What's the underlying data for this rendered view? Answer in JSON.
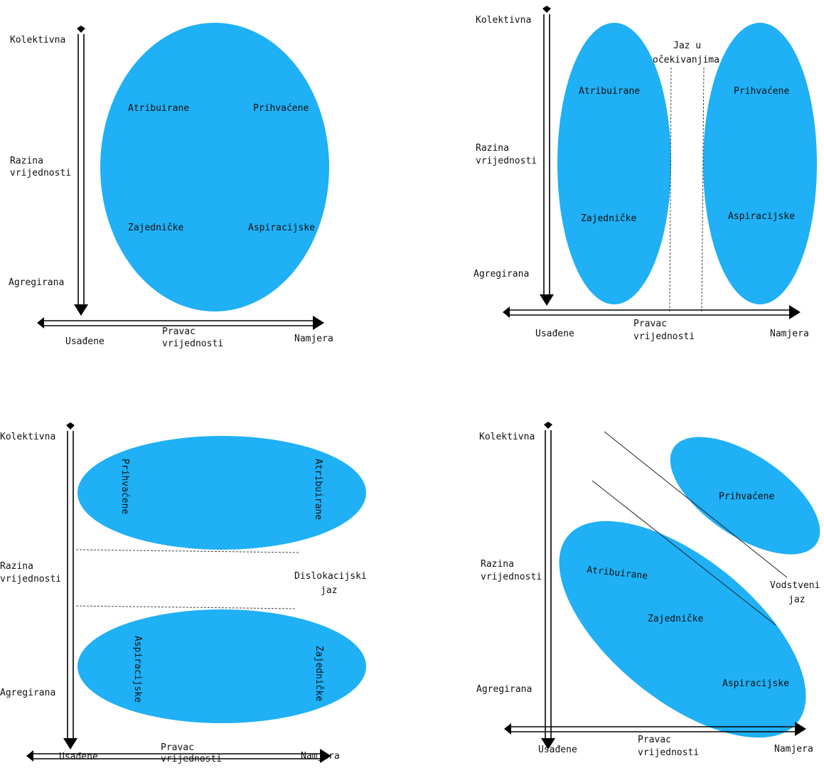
{
  "colors": {
    "ellipse": "#1fb0f5",
    "line": "#000000",
    "text": "#111111"
  },
  "panels": [
    {
      "axis": {
        "top": "Kolektivna",
        "middle_1": "Razina",
        "middle_2": "vrijednosti",
        "bottom": "Agregirana",
        "left": "Usađene",
        "center_1": "Pravac",
        "center_2": "vrijednosti",
        "right": "Namjera"
      },
      "labels": {
        "tl": "Atribuirane",
        "tr": "Prihvaćene",
        "bl": "Zajedničke",
        "br": "Aspiracijske"
      }
    },
    {
      "axis": {
        "top": "Kolektivna",
        "middle_1": "Razina",
        "middle_2": "vrijednosti",
        "bottom": "Agregirana",
        "left": "Usađene",
        "center_1": "Pravac",
        "center_2": "vrijednosti",
        "right": "Namjera"
      },
      "labels": {
        "tl": "Atribuirane",
        "bl": "Zajedničke",
        "tr": "Prihvaćene",
        "br": "Aspiracijske"
      },
      "gap_1": "Jaz u",
      "gap_2": "očekivanjima"
    },
    {
      "axis": {
        "top": "Kolektivna",
        "middle_1": "Razina",
        "middle_2": "vrijednosti",
        "bottom": "Agregirana",
        "left": "Usađene",
        "center_1": "Pravac",
        "center_2": "vrijednosti",
        "right": "Namjera"
      },
      "labels": {
        "tl": "Prihvaćene",
        "tr": "Atribuirane",
        "bl": "Aspiracijske",
        "br": "Zajedničke"
      },
      "gap_1": "Dislokacijski",
      "gap_2": "jaz"
    },
    {
      "axis": {
        "top": "Kolektivna",
        "middle_1": "Razina",
        "middle_2": "vrijednosti",
        "bottom": "Agregirana",
        "left": "Usađene",
        "center_1": "Pravac",
        "center_2": "vrijednosti",
        "right": "Namjera"
      },
      "labels": {
        "small": "Prihvaćene",
        "a": "Atribuirane",
        "b": "Zajedničke",
        "c": "Aspiracijske"
      },
      "gap_1": "Vodstveni",
      "gap_2": "jaz"
    }
  ]
}
